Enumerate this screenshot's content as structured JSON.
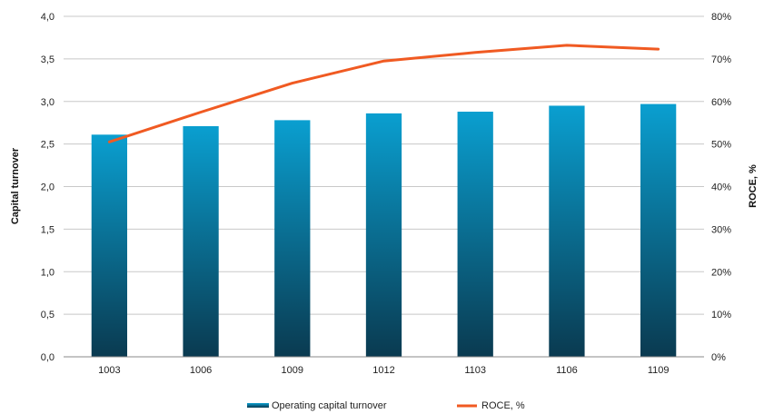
{
  "chart_data": {
    "type": "bar",
    "categories": [
      "1003",
      "1006",
      "1009",
      "1012",
      "1103",
      "1106",
      "1109"
    ],
    "series": [
      {
        "name": "Operating capital turnover",
        "type": "bar",
        "axis": "left",
        "values": [
          2.61,
          2.71,
          2.78,
          2.86,
          2.88,
          2.95,
          2.97
        ]
      },
      {
        "name": "ROCE, %",
        "type": "line",
        "axis": "right",
        "values": [
          50.5,
          57.5,
          64.3,
          69.5,
          71.5,
          73.2,
          72.3
        ]
      }
    ],
    "ylabel": "Capital turnover",
    "y2label": "ROCE, %",
    "ylim": [
      0,
      4.0
    ],
    "y2lim": [
      0,
      80
    ],
    "yticks": [
      "0,0",
      "0,5",
      "1,0",
      "1,5",
      "2,0",
      "2,5",
      "3,0",
      "3,5",
      "4,0"
    ],
    "y2ticks": [
      "0%",
      "10%",
      "20%",
      "30%",
      "40%",
      "50%",
      "60%",
      "70%",
      "80%"
    ],
    "grid": true,
    "legend_position": "bottom",
    "colors": {
      "bar_top": "#0a9fd0",
      "bar_bottom": "#0a3a50",
      "line": "#f05a22",
      "grid": "#c8c8c8",
      "axis": "#8a8a8a"
    }
  }
}
